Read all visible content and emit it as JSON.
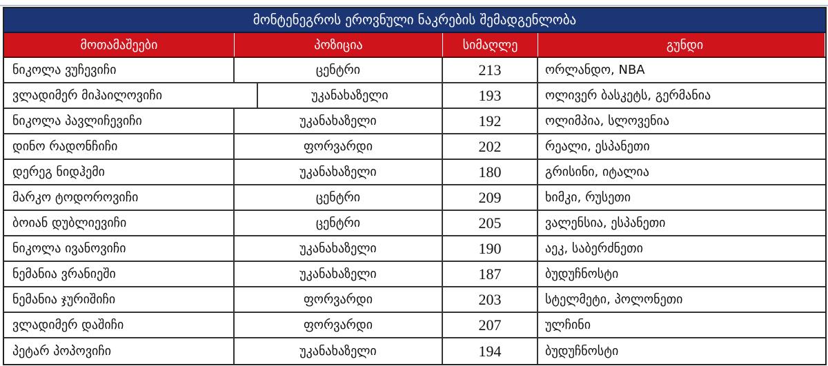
{
  "title": "მონტენეგროს ეროვნული ნაკრების შემადგენლობა",
  "colors": {
    "title_bg": "#1b3575",
    "header_bg": "#d0141c"
  },
  "columns": [
    "მოთამაშეები",
    "პოზიცია",
    "სიმაღლე",
    "გუნდი"
  ],
  "rows": [
    {
      "player": "ნიკოლა ვუჩევიჩი",
      "position": "ცენტრი",
      "height": "213",
      "team": "ორლანდო, NBA"
    },
    {
      "player": "ვლადიმერ მიჰაილოვიჩი",
      "position": "უკანახაზელი",
      "height": "193",
      "team": "ოლივერ ბასკეტს, გერმანია"
    },
    {
      "player": "ნიკოლა პავლიჩევიჩი",
      "position": "უკანახაზელი",
      "height": "192",
      "team": "ოლიმპია, სლოვენია"
    },
    {
      "player": "დინო რადონჩიჩი",
      "position": "ფორვარდი",
      "height": "202",
      "team": "რეალი, ესპანეთი"
    },
    {
      "player": "დერეგ ნიდჰემი",
      "position": "უკანახაზელი",
      "height": "180",
      "team": "გრისინი, იტალია"
    },
    {
      "player": "მარკო ტოდოროვიჩი",
      "position": "ცენტრი",
      "height": "209",
      "team": "ხიმკი, რუსეთი"
    },
    {
      "player": "ბოიან დუბლიევიჩი",
      "position": "ცენტრი",
      "height": "205",
      "team": "ვალენსია, ესპანეთი"
    },
    {
      "player": "ნიკოლა ივანოვიჩი",
      "position": "უკანახაზელი",
      "height": "190",
      "team": "აეკ, საბერძნეთი"
    },
    {
      "player": "ნემანია ვრანიეში",
      "position": "უკანახაზელი",
      "height": "187",
      "team": "ბუდუჩნოსტი"
    },
    {
      "player": "ნემანია ჯურიშიჩი",
      "position": "ფორვარდი",
      "height": "203",
      "team": "სტელმეტი, პოლონეთი"
    },
    {
      "player": "ვლადიმერ დაშიჩი",
      "position": "ფორვარდი",
      "height": "207",
      "team": "ულჩინი"
    },
    {
      "player": "პეტარ პოპოვიჩი",
      "position": "უკანახაზელი",
      "height": "194",
      "team": "ბუდუჩნოსტი"
    }
  ]
}
